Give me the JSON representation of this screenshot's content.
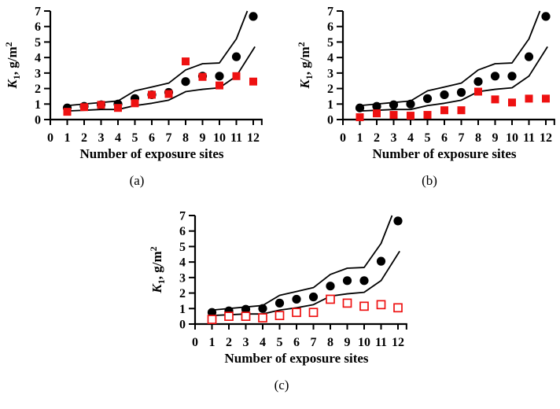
{
  "page": {
    "background": "#ffffff"
  },
  "panels": [
    {
      "caption": "(a)"
    },
    {
      "caption": "(b)"
    },
    {
      "caption": "(c)"
    }
  ],
  "colors": {
    "black": "#000000",
    "red": "#ee1111",
    "white": "#ffffff"
  },
  "chart_data": [
    {
      "type": "scatter",
      "panel_label": "(a)",
      "title": "",
      "xlabel": "Number of exposure sites",
      "ylabel": "K1, g/m2",
      "ylabel_parts": {
        "var": "K",
        "sub": "1",
        "mid": ", g/m",
        "sup": "2"
      },
      "xlim": [
        0,
        12
      ],
      "ylim": [
        0,
        7
      ],
      "xticks": [
        0,
        1,
        2,
        3,
        4,
        5,
        6,
        7,
        8,
        9,
        10,
        11,
        12
      ],
      "yticks": [
        0,
        1,
        2,
        3,
        4,
        5,
        6,
        7
      ],
      "grid": false,
      "legend": false,
      "x": [
        1,
        2,
        3,
        4,
        5,
        6,
        7,
        8,
        9,
        10,
        11,
        12
      ],
      "series": [
        {
          "name": "upper-confidence-line",
          "type": "line",
          "color": "#000000",
          "x": [
            1,
            2,
            3,
            4,
            5,
            6,
            7,
            8,
            9,
            10,
            11,
            11.65
          ],
          "y": [
            0.9,
            1.0,
            1.1,
            1.2,
            1.85,
            2.1,
            2.35,
            3.2,
            3.6,
            3.65,
            5.2,
            7.0
          ]
        },
        {
          "name": "lower-confidence-line",
          "type": "line",
          "color": "#000000",
          "x": [
            1,
            2,
            3,
            4,
            5,
            6,
            7,
            8,
            9,
            10,
            11,
            12.1
          ],
          "y": [
            0.55,
            0.6,
            0.65,
            0.65,
            0.9,
            1.05,
            1.25,
            1.8,
            1.95,
            2.05,
            2.8,
            4.7
          ]
        },
        {
          "name": "calculated-k1-circles",
          "type": "scatter",
          "marker": "circle",
          "color": "#000000",
          "y": [
            0.75,
            0.85,
            0.95,
            1.0,
            1.35,
            1.6,
            1.75,
            2.45,
            2.8,
            2.8,
            4.05,
            6.65
          ]
        },
        {
          "name": "measured-k1-squares",
          "type": "scatter",
          "marker": "square",
          "color": "#ee1111",
          "y": [
            0.5,
            0.8,
            0.95,
            0.75,
            1.05,
            1.6,
            1.65,
            3.75,
            2.75,
            2.2,
            2.8,
            2.45
          ]
        }
      ]
    },
    {
      "type": "scatter",
      "panel_label": "(b)",
      "title": "",
      "xlabel": "Number of exposure sites",
      "ylabel": "K1, g/m2",
      "ylabel_parts": {
        "var": "K",
        "sub": "1",
        "mid": ", g/m",
        "sup": "2"
      },
      "xlim": [
        0,
        12
      ],
      "ylim": [
        0,
        7
      ],
      "xticks": [
        0,
        1,
        2,
        3,
        4,
        5,
        6,
        7,
        8,
        9,
        10,
        11,
        12
      ],
      "yticks": [
        0,
        1,
        2,
        3,
        4,
        5,
        6,
        7
      ],
      "grid": false,
      "legend": false,
      "x": [
        1,
        2,
        3,
        4,
        5,
        6,
        7,
        8,
        9,
        10,
        11,
        12
      ],
      "series": [
        {
          "name": "upper-confidence-line",
          "type": "line",
          "color": "#000000",
          "x": [
            1,
            2,
            3,
            4,
            5,
            6,
            7,
            8,
            9,
            10,
            11,
            11.65
          ],
          "y": [
            0.9,
            1.0,
            1.1,
            1.2,
            1.85,
            2.1,
            2.35,
            3.2,
            3.6,
            3.65,
            5.2,
            7.0
          ]
        },
        {
          "name": "lower-confidence-line",
          "type": "line",
          "color": "#000000",
          "x": [
            1,
            2,
            3,
            4,
            5,
            6,
            7,
            8,
            9,
            10,
            11,
            12.1
          ],
          "y": [
            0.55,
            0.6,
            0.65,
            0.65,
            0.9,
            1.05,
            1.25,
            1.8,
            1.95,
            2.05,
            2.8,
            4.7
          ]
        },
        {
          "name": "calculated-k1-circles",
          "type": "scatter",
          "marker": "circle",
          "color": "#000000",
          "y": [
            0.75,
            0.85,
            0.95,
            1.0,
            1.35,
            1.6,
            1.75,
            2.45,
            2.8,
            2.8,
            4.05,
            6.65
          ]
        },
        {
          "name": "measured-k1-squares",
          "type": "scatter",
          "marker": "square",
          "color": "#ee1111",
          "y": [
            0.15,
            0.4,
            0.3,
            0.25,
            0.3,
            0.6,
            0.6,
            1.8,
            1.3,
            1.1,
            1.35,
            1.35
          ]
        }
      ]
    },
    {
      "type": "scatter",
      "panel_label": "(c)",
      "title": "",
      "xlabel": "Number of exposure sites",
      "ylabel": "K1, g/m2",
      "ylabel_parts": {
        "var": "K",
        "sub": "1",
        "mid": ", g/m",
        "sup": "2"
      },
      "xlim": [
        0,
        12
      ],
      "ylim": [
        0,
        7
      ],
      "xticks": [
        0,
        1,
        2,
        3,
        4,
        5,
        6,
        7,
        8,
        9,
        10,
        11,
        12
      ],
      "yticks": [
        0,
        1,
        2,
        3,
        4,
        5,
        6,
        7
      ],
      "grid": false,
      "legend": false,
      "x": [
        1,
        2,
        3,
        4,
        5,
        6,
        7,
        8,
        9,
        10,
        11,
        12
      ],
      "series": [
        {
          "name": "upper-confidence-line",
          "type": "line",
          "color": "#000000",
          "x": [
            1,
            2,
            3,
            4,
            5,
            6,
            7,
            8,
            9,
            10,
            11,
            11.65
          ],
          "y": [
            0.9,
            1.0,
            1.1,
            1.2,
            1.85,
            2.1,
            2.35,
            3.2,
            3.6,
            3.65,
            5.2,
            7.0
          ]
        },
        {
          "name": "lower-confidence-line",
          "type": "line",
          "color": "#000000",
          "x": [
            1,
            2,
            3,
            4,
            5,
            6,
            7,
            8,
            9,
            10,
            11,
            12.1
          ],
          "y": [
            0.55,
            0.6,
            0.65,
            0.65,
            0.9,
            1.05,
            1.25,
            1.8,
            1.95,
            2.05,
            2.8,
            4.7
          ]
        },
        {
          "name": "calculated-k1-circles",
          "type": "scatter",
          "marker": "circle",
          "color": "#000000",
          "y": [
            0.75,
            0.85,
            0.95,
            1.0,
            1.35,
            1.6,
            1.75,
            2.45,
            2.8,
            2.8,
            4.05,
            6.65
          ]
        },
        {
          "name": "measured-k1-squares-open",
          "type": "scatter",
          "marker": "square-open",
          "color": "#ee1111",
          "y": [
            0.3,
            0.5,
            0.5,
            0.4,
            0.55,
            0.75,
            0.75,
            1.6,
            1.35,
            1.15,
            1.25,
            1.05
          ]
        }
      ]
    }
  ]
}
